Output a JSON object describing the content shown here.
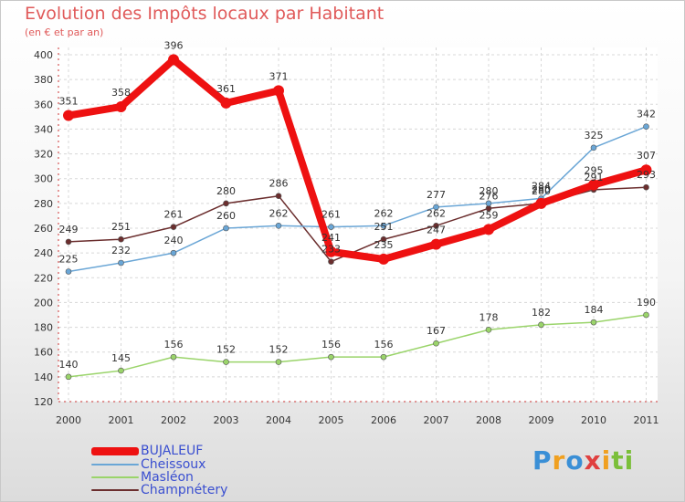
{
  "chart_data": {
    "type": "line",
    "title": "Evolution des Impôts locaux par Habitant",
    "subtitle": "(en € et par an)",
    "x": [
      "2000",
      "2001",
      "2002",
      "2003",
      "2004",
      "2005",
      "2006",
      "2007",
      "2008",
      "2009",
      "2010",
      "2011"
    ],
    "ylim": [
      120,
      400
    ],
    "yticks": [
      "120",
      "140",
      "160",
      "180",
      "200",
      "220",
      "240",
      "260",
      "280",
      "300",
      "320",
      "340",
      "360",
      "380",
      "400"
    ],
    "grid": true,
    "series": [
      {
        "name": "BUJALEUF",
        "color": "#ee1111",
        "values": [
          351,
          358,
          396,
          361,
          371,
          241,
          235,
          247,
          259,
          280,
          295,
          307
        ],
        "labels": [
          "351",
          "358",
          "396",
          "361",
          "371",
          "241",
          "235",
          "247",
          "259",
          "280",
          "295",
          "307"
        ]
      },
      {
        "name": "Cheissoux",
        "color": "#6aa6d6",
        "values": [
          225,
          232,
          240,
          260,
          262,
          261,
          262,
          277,
          280,
          284,
          325,
          342
        ],
        "labels": [
          "225",
          "232",
          "240",
          "260",
          "262",
          "261",
          "262",
          "277",
          "280",
          "284",
          "325",
          "342"
        ]
      },
      {
        "name": "Masléon",
        "color": "#9ad46a",
        "values": [
          140,
          145,
          156,
          152,
          152,
          156,
          156,
          167,
          178,
          182,
          184,
          190
        ],
        "labels": [
          "140",
          "145",
          "156",
          "152",
          "152",
          "156",
          "156",
          "167",
          "178",
          "182",
          "184",
          "190"
        ]
      },
      {
        "name": "Champnétery",
        "color": "#6b2e2e",
        "values": [
          249,
          251,
          261,
          280,
          286,
          233,
          251,
          262,
          276,
          280,
          291,
          293
        ],
        "labels": [
          "249",
          "251",
          "261",
          "280",
          "286",
          "233",
          "251",
          "262",
          "276",
          "280",
          "291",
          "293"
        ]
      }
    ]
  },
  "logo": {
    "letters": [
      "P",
      "r",
      "o",
      "x",
      "i",
      "t",
      "i"
    ]
  }
}
